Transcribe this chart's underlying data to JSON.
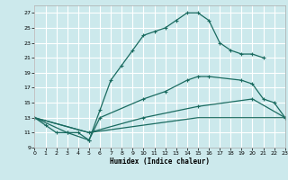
{
  "xlabel": "Humidex (Indice chaleur)",
  "bg_color": "#cce9ec",
  "grid_color": "#ffffff",
  "line_color": "#1a6b60",
  "xlim": [
    0,
    23
  ],
  "ylim": [
    9,
    28
  ],
  "xticks": [
    0,
    1,
    2,
    3,
    4,
    5,
    6,
    7,
    8,
    9,
    10,
    11,
    12,
    13,
    14,
    15,
    16,
    17,
    18,
    19,
    20,
    21,
    22,
    23
  ],
  "yticks": [
    9,
    11,
    13,
    15,
    17,
    19,
    21,
    23,
    25,
    27
  ],
  "line1_x": [
    0,
    1,
    2,
    3,
    4,
    5,
    6,
    7,
    8,
    9,
    10,
    11,
    12,
    13,
    14,
    15,
    16,
    17,
    18,
    19,
    20,
    21
  ],
  "line1_y": [
    13,
    12,
    11,
    11,
    11,
    10,
    14,
    18,
    20,
    22,
    24,
    24.5,
    25,
    26,
    27,
    27,
    26,
    23,
    22,
    21.5,
    21.5,
    21
  ],
  "line2_x": [
    0,
    3,
    5,
    6,
    10,
    12,
    14,
    15,
    16,
    19,
    20,
    21,
    22,
    23
  ],
  "line2_y": [
    13,
    11,
    10,
    13,
    15.5,
    16.5,
    18,
    18.5,
    18.5,
    18,
    17.5,
    15.5,
    15,
    13
  ],
  "line3_x": [
    0,
    5,
    10,
    15,
    20,
    23
  ],
  "line3_y": [
    13,
    11,
    13,
    14.5,
    15.5,
    13
  ],
  "line4_x": [
    0,
    5,
    10,
    15,
    20,
    23
  ],
  "line4_y": [
    13,
    11,
    12,
    13,
    13,
    13
  ]
}
